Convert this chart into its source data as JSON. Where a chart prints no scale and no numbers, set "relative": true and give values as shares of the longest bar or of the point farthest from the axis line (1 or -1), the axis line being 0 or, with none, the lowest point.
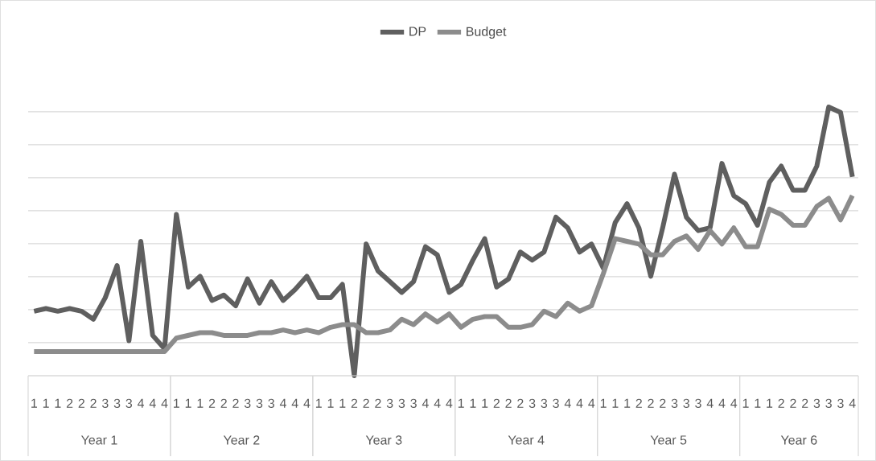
{
  "chart_data": {
    "type": "line",
    "relative": true,
    "legend": "top",
    "grid": "y",
    "line_style": "solid",
    "marker": "none",
    "categories": [
      "1",
      "1",
      "1",
      "2",
      "2",
      "2",
      "3",
      "3",
      "3",
      "4",
      "4",
      "4",
      "1",
      "1",
      "1",
      "2",
      "2",
      "2",
      "3",
      "3",
      "3",
      "4",
      "4",
      "4",
      "1",
      "1",
      "1",
      "2",
      "2",
      "2",
      "3",
      "3",
      "3",
      "4",
      "4",
      "4",
      "1",
      "1",
      "1",
      "2",
      "2",
      "2",
      "3",
      "3",
      "3",
      "4",
      "4",
      "4",
      "1",
      "1",
      "1",
      "2",
      "2",
      "2",
      "3",
      "3",
      "3",
      "4",
      "4",
      "4",
      "1",
      "1",
      "1",
      "2",
      "2",
      "2",
      "3",
      "3",
      "3",
      "4"
    ],
    "annotations": [
      "Year 1",
      "Year 2",
      "Year 3",
      "Year 4",
      "Year 5",
      "Year 6"
    ],
    "series": [
      {
        "name": "DP",
        "color": "#5f5f5f",
        "values": [
          0.24,
          0.25,
          0.24,
          0.25,
          0.24,
          0.21,
          0.29,
          0.41,
          0.13,
          0.5,
          0.15,
          0.1,
          0.6,
          0.33,
          0.37,
          0.28,
          0.3,
          0.26,
          0.36,
          0.27,
          0.35,
          0.28,
          0.32,
          0.37,
          0.29,
          0.29,
          0.34,
          0,
          0.49,
          0.39,
          0.35,
          0.31,
          0.35,
          0.48,
          0.45,
          0.31,
          0.34,
          0.43,
          0.51,
          0.33,
          0.36,
          0.46,
          0.43,
          0.46,
          0.59,
          0.55,
          0.46,
          0.49,
          0.4,
          0.57,
          0.64,
          0.55,
          0.37,
          0.55,
          0.75,
          0.59,
          0.54,
          0.55,
          0.79,
          0.67,
          0.64,
          0.56,
          0.72,
          0.78,
          0.69,
          0.69,
          0.78,
          1,
          0.98,
          0.74
        ]
      },
      {
        "name": "Budget",
        "color": "#8c8c8c",
        "values": [
          0.09,
          0.09,
          0.09,
          0.09,
          0.09,
          0.09,
          0.09,
          0.09,
          0.09,
          0.09,
          0.09,
          0.09,
          0.14,
          0.15,
          0.16,
          0.16,
          0.15,
          0.15,
          0.15,
          0.16,
          0.16,
          0.17,
          0.16,
          0.17,
          0.16,
          0.18,
          0.19,
          0.19,
          0.16,
          0.16,
          0.17,
          0.21,
          0.19,
          0.23,
          0.2,
          0.23,
          0.18,
          0.21,
          0.22,
          0.22,
          0.18,
          0.18,
          0.19,
          0.24,
          0.22,
          0.27,
          0.24,
          0.26,
          0.38,
          0.51,
          0.5,
          0.49,
          0.45,
          0.45,
          0.5,
          0.52,
          0.47,
          0.54,
          0.49,
          0.55,
          0.48,
          0.48,
          0.62,
          0.6,
          0.56,
          0.56,
          0.63,
          0.66,
          0.58,
          0.67
        ]
      }
    ]
  }
}
